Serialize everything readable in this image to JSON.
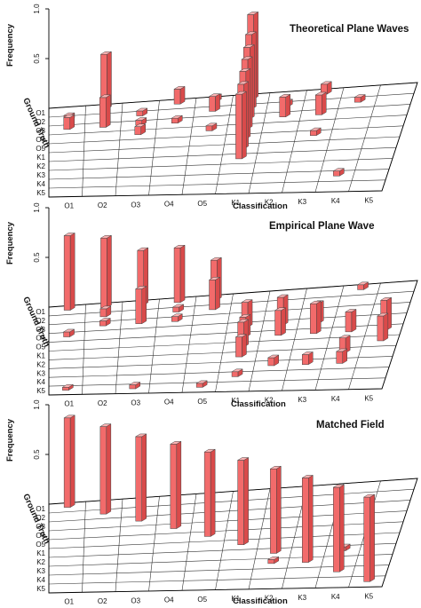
{
  "colors": {
    "bar_front": "#f26b6b",
    "bar_side": "#d94a4a",
    "bar_top": "#fbb3b3",
    "bar_edge": "#444444"
  },
  "chart_data": [
    {
      "type": "bar3d",
      "title": "Theoretical Plane Waves",
      "xlabel": "Classification",
      "ylabel": "Ground Truth",
      "zlabel": "Frequency",
      "x_categories": [
        "O1",
        "O2",
        "O3",
        "O4",
        "O5",
        "K1",
        "K2",
        "K3",
        "K4",
        "K5"
      ],
      "y_categories": [
        "O1",
        "O2",
        "O3",
        "O4",
        "O5",
        "K1",
        "K2",
        "K3",
        "K4",
        "K5"
      ],
      "z_ticks": [
        "0.5",
        "1.0"
      ],
      "zlim": [
        0,
        1
      ],
      "grid": true,
      "bars": [
        {
          "x": "O1",
          "y": "O2",
          "z": 0.05
        },
        {
          "x": "O1",
          "y": "O3",
          "z": 0.12
        },
        {
          "x": "O2",
          "y": "O1",
          "z": 0.55
        },
        {
          "x": "O2",
          "y": "O3",
          "z": 0.3
        },
        {
          "x": "O3",
          "y": "O2",
          "z": 0.05
        },
        {
          "x": "O3",
          "y": "O4",
          "z": 0.08
        },
        {
          "x": "O3",
          "y": "O3",
          "z": 0.05
        },
        {
          "x": "O4",
          "y": "O1",
          "z": 0.15
        },
        {
          "x": "O4",
          "y": "O3",
          "z": 0.05
        },
        {
          "x": "O5",
          "y": "O1",
          "z": 0.05
        },
        {
          "x": "O5",
          "y": "O2",
          "z": 0.15
        },
        {
          "x": "O5",
          "y": "O4",
          "z": 0.05
        },
        {
          "x": "K1",
          "y": "O1",
          "z": 0.85
        },
        {
          "x": "K1",
          "y": "O2",
          "z": 0.75
        },
        {
          "x": "K1",
          "y": "O3",
          "z": 0.72
        },
        {
          "x": "K1",
          "y": "O4",
          "z": 0.7
        },
        {
          "x": "K1",
          "y": "O5",
          "z": 0.68
        },
        {
          "x": "K1",
          "y": "K1",
          "z": 0.65
        },
        {
          "x": "K1",
          "y": "K2",
          "z": 0.65
        },
        {
          "x": "K2",
          "y": "O3",
          "z": 0.2
        },
        {
          "x": "K2",
          "y": "O2",
          "z": 0.05
        },
        {
          "x": "K3",
          "y": "O1",
          "z": 0.1
        },
        {
          "x": "K3",
          "y": "O3",
          "z": 0.2
        },
        {
          "x": "K3",
          "y": "O5",
          "z": 0.05
        },
        {
          "x": "K4",
          "y": "O2",
          "z": 0.05
        },
        {
          "x": "K4",
          "y": "K4",
          "z": 0.05
        }
      ]
    },
    {
      "type": "bar3d",
      "title": "Empirical Plane Wave",
      "xlabel": "Classification",
      "ylabel": "Ground Truth",
      "zlabel": "Frequency",
      "x_categories": [
        "O1",
        "O2",
        "O3",
        "O4",
        "O5",
        "K1",
        "K2",
        "K3",
        "K4",
        "K5"
      ],
      "y_categories": [
        "O1",
        "O2",
        "O3",
        "O4",
        "O5",
        "K1",
        "K2",
        "K3",
        "K4",
        "K5"
      ],
      "z_ticks": [
        "0.5",
        "1.0"
      ],
      "zlim": [
        0,
        1
      ],
      "grid": true,
      "bars": [
        {
          "x": "O1",
          "y": "O1",
          "z": 0.75
        },
        {
          "x": "O1",
          "y": "O4",
          "z": 0.05
        },
        {
          "x": "O1",
          "y": "K5",
          "z": 0.03
        },
        {
          "x": "O2",
          "y": "O1",
          "z": 0.7
        },
        {
          "x": "O2",
          "y": "O2",
          "z": 0.08
        },
        {
          "x": "O2",
          "y": "O3",
          "z": 0.05
        },
        {
          "x": "O3",
          "y": "O1",
          "z": 0.55
        },
        {
          "x": "O3",
          "y": "O3",
          "z": 0.35
        },
        {
          "x": "O3",
          "y": "K5",
          "z": 0.04
        },
        {
          "x": "O4",
          "y": "O1",
          "z": 0.55
        },
        {
          "x": "O4",
          "y": "O2",
          "z": 0.05
        },
        {
          "x": "O4",
          "y": "O3",
          "z": 0.05
        },
        {
          "x": "O5",
          "y": "O1",
          "z": 0.4
        },
        {
          "x": "O5",
          "y": "O2",
          "z": 0.3
        },
        {
          "x": "O5",
          "y": "K5",
          "z": 0.04
        },
        {
          "x": "K1",
          "y": "O4",
          "z": 0.25
        },
        {
          "x": "K1",
          "y": "O5",
          "z": 0.2
        },
        {
          "x": "K1",
          "y": "K1",
          "z": 0.25
        },
        {
          "x": "K1",
          "y": "K2",
          "z": 0.2
        },
        {
          "x": "K1",
          "y": "K4",
          "z": 0.05
        },
        {
          "x": "K2",
          "y": "O4",
          "z": 0.28
        },
        {
          "x": "K2",
          "y": "O5",
          "z": 0.25
        },
        {
          "x": "K2",
          "y": "K3",
          "z": 0.08
        },
        {
          "x": "K3",
          "y": "O4",
          "z": 0.2
        },
        {
          "x": "K3",
          "y": "O5",
          "z": 0.3
        },
        {
          "x": "K3",
          "y": "K3",
          "z": 0.1
        },
        {
          "x": "K4",
          "y": "O1",
          "z": 0.05
        },
        {
          "x": "K4",
          "y": "O5",
          "z": 0.2
        },
        {
          "x": "K4",
          "y": "K2",
          "z": 0.15
        },
        {
          "x": "K4",
          "y": "K3",
          "z": 0.12
        },
        {
          "x": "K5",
          "y": "O5",
          "z": 0.3
        },
        {
          "x": "K5",
          "y": "K1",
          "z": 0.25
        }
      ]
    },
    {
      "type": "bar3d",
      "title": "Matched Field",
      "xlabel": "Classification",
      "ylabel": "Ground Truth",
      "zlabel": "Frequency",
      "x_categories": [
        "O1",
        "O2",
        "O3",
        "O4",
        "O5",
        "K1",
        "K2",
        "K3",
        "K4",
        "K5"
      ],
      "y_categories": [
        "O1",
        "O2",
        "O3",
        "O4",
        "O5",
        "K1",
        "K2",
        "K3",
        "K4",
        "K5"
      ],
      "z_ticks": [
        "0.5",
        "1.0"
      ],
      "zlim": [
        0,
        1
      ],
      "grid": true,
      "bars": [
        {
          "x": "O1",
          "y": "O1",
          "z": 0.9
        },
        {
          "x": "O2",
          "y": "O2",
          "z": 0.88
        },
        {
          "x": "O3",
          "y": "O3",
          "z": 0.85
        },
        {
          "x": "O4",
          "y": "O4",
          "z": 0.85
        },
        {
          "x": "O5",
          "y": "O5",
          "z": 0.85
        },
        {
          "x": "K1",
          "y": "K1",
          "z": 0.85
        },
        {
          "x": "K2",
          "y": "K2",
          "z": 0.85
        },
        {
          "x": "K2",
          "y": "K3",
          "z": 0.04
        },
        {
          "x": "K3",
          "y": "K3",
          "z": 0.85
        },
        {
          "x": "K4",
          "y": "K4",
          "z": 0.85
        },
        {
          "x": "K4",
          "y": "K2",
          "z": 0.04
        },
        {
          "x": "K5",
          "y": "K5",
          "z": 0.85
        }
      ]
    }
  ]
}
